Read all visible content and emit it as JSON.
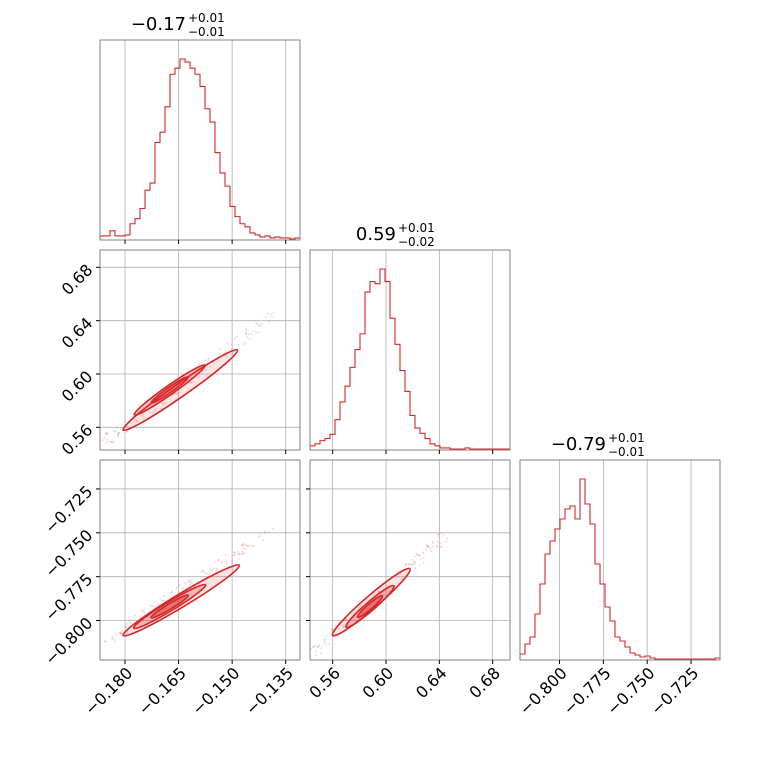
{
  "chart_data": {
    "type": "corner",
    "grid": true,
    "color": "#d62728",
    "parameters": [
      {
        "value": "−0.17",
        "plus": "+0.01",
        "minus": "−0.01"
      },
      {
        "value": "0.59",
        "plus": "+0.01",
        "minus": "−0.02"
      },
      {
        "value": "−0.79",
        "plus": "+0.01",
        "minus": "−0.01"
      }
    ],
    "axes": [
      {
        "range": [
          -0.187,
          -0.131
        ],
        "ticks": [
          -0.18,
          -0.165,
          -0.15,
          -0.135
        ],
        "tick_labels": [
          "−0.180",
          "−0.165",
          "−0.150",
          "−0.135"
        ]
      },
      {
        "range": [
          0.543,
          0.693
        ],
        "ticks": [
          0.56,
          0.6,
          0.64,
          0.68
        ],
        "tick_labels": [
          "0.56",
          "0.60",
          "0.64",
          "0.68"
        ]
      },
      {
        "range": [
          -0.8225,
          -0.7085
        ],
        "ticks": [
          -0.8,
          -0.775,
          -0.75,
          -0.725
        ],
        "tick_labels": [
          "−0.800",
          "−0.775",
          "−0.750",
          "−0.725"
        ]
      }
    ],
    "histograms": [
      {
        "parameter": 0,
        "bins": [
          -0.187,
          -0.131
        ],
        "counts": [
          3,
          3,
          8,
          3,
          3,
          4,
          15,
          20,
          30,
          48,
          55,
          95,
          105,
          130,
          162,
          168,
          177,
          174,
          168,
          162,
          150,
          128,
          115,
          85,
          65,
          52,
          32,
          22,
          15,
          12,
          6,
          4,
          2,
          3,
          1,
          2,
          1,
          1,
          0,
          1
        ]
      },
      {
        "parameter": 1,
        "bins": [
          0.543,
          0.693
        ],
        "counts": [
          3,
          5,
          8,
          10,
          14,
          28,
          45,
          60,
          78,
          95,
          110,
          150,
          160,
          158,
          172,
          160,
          125,
          100,
          75,
          55,
          32,
          20,
          15,
          10,
          5,
          3,
          1,
          1,
          0,
          0,
          0,
          1,
          0,
          0,
          0,
          0,
          0,
          0,
          0,
          0
        ]
      },
      {
        "parameter": 2,
        "bins": [
          -0.8225,
          -0.7085
        ],
        "counts": [
          5,
          15,
          22,
          45,
          75,
          105,
          118,
          130,
          140,
          150,
          153,
          140,
          180,
          155,
          135,
          95,
          75,
          52,
          38,
          22,
          18,
          12,
          6,
          4,
          2,
          3,
          1,
          0,
          0,
          0,
          0,
          0,
          0,
          0,
          0,
          0,
          0,
          0,
          0,
          1
        ]
      }
    ],
    "correlations": [
      {
        "x": 0,
        "y": 1,
        "center": [
          -0.1675,
          0.588
        ],
        "end_a": [
          -0.1805,
          0.558
        ],
        "end_b": [
          -0.1485,
          0.618
        ],
        "scatter_end_a": [
          -0.186,
          0.549
        ],
        "scatter_end_b": [
          -0.138,
          0.645
        ]
      },
      {
        "x": 0,
        "y": 2,
        "center": [
          -0.1675,
          -0.792
        ],
        "end_a": [
          -0.1805,
          -0.8085
        ],
        "end_b": [
          -0.148,
          -0.7685
        ],
        "scatter_end_a": [
          -0.186,
          -0.8125
        ],
        "scatter_end_b": [
          -0.138,
          -0.748
        ]
      },
      {
        "x": 1,
        "y": 2,
        "center": [
          0.588,
          -0.792
        ],
        "end_a": [
          0.56,
          -0.8085
        ],
        "end_b": [
          0.618,
          -0.7705
        ],
        "scatter_end_a": [
          0.545,
          -0.8185
        ],
        "scatter_end_b": [
          0.645,
          -0.7515
        ]
      }
    ]
  }
}
